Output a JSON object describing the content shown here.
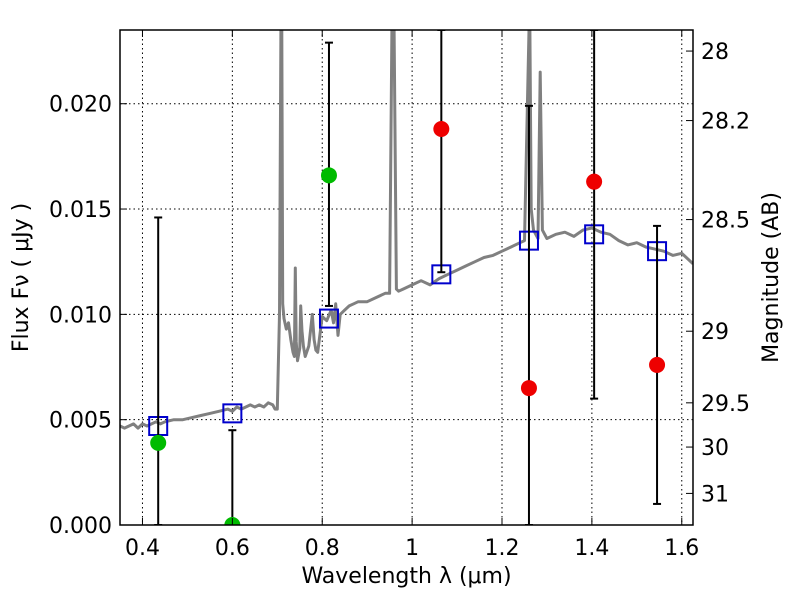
{
  "chart_data": {
    "type": "scatter",
    "xlabel": "Wavelength  λ (μm)",
    "ylabel": "Flux  Fν  ( μJy )",
    "y2label": "Magnitude (AB)",
    "xlim": [
      0.35,
      1.625
    ],
    "ylim": [
      0.0,
      0.0235
    ],
    "grid": true,
    "x_ticks": [
      0.4,
      0.6,
      0.8,
      1.0,
      1.2,
      1.4,
      1.6
    ],
    "x_tick_labels": [
      "0.4",
      "0.6",
      "0.8",
      "1",
      "1.2",
      "1.4",
      "1.6"
    ],
    "y_ticks": [
      0.0,
      0.005,
      0.01,
      0.015,
      0.02
    ],
    "y_tick_labels": [
      "0.000",
      "0.005",
      "0.010",
      "0.015",
      "0.020"
    ],
    "y2_ticks": [
      {
        "flux": 0.0225,
        "label": "28"
      },
      {
        "flux": 0.0192,
        "label": "28.2"
      },
      {
        "flux": 0.0145,
        "label": "28.5"
      },
      {
        "flux": 0.0092,
        "label": "29"
      },
      {
        "flux": 0.0058,
        "label": "29.5"
      },
      {
        "flux": 0.0037,
        "label": "30"
      },
      {
        "flux": 0.0015,
        "label": "31"
      }
    ],
    "spectrum": {
      "color": "#808080",
      "x": [
        0.35,
        0.36,
        0.37,
        0.38,
        0.39,
        0.4,
        0.41,
        0.42,
        0.43,
        0.44,
        0.45,
        0.47,
        0.49,
        0.51,
        0.53,
        0.55,
        0.57,
        0.59,
        0.6,
        0.61,
        0.62,
        0.63,
        0.64,
        0.65,
        0.66,
        0.67,
        0.68,
        0.69,
        0.695,
        0.7,
        0.705,
        0.708,
        0.71,
        0.712,
        0.715,
        0.72,
        0.725,
        0.73,
        0.735,
        0.738,
        0.74,
        0.742,
        0.745,
        0.75,
        0.752,
        0.755,
        0.758,
        0.762,
        0.77,
        0.778,
        0.782,
        0.786,
        0.79,
        0.8,
        0.81,
        0.82,
        0.825,
        0.83,
        0.835,
        0.84,
        0.85,
        0.86,
        0.87,
        0.88,
        0.9,
        0.92,
        0.94,
        0.95,
        0.955,
        0.96,
        0.965,
        0.97,
        0.98,
        1.0,
        1.02,
        1.04,
        1.06,
        1.08,
        1.1,
        1.12,
        1.14,
        1.16,
        1.18,
        1.2,
        1.22,
        1.24,
        1.25,
        1.26,
        1.262,
        1.265,
        1.27,
        1.28,
        1.285,
        1.29,
        1.3,
        1.32,
        1.34,
        1.36,
        1.38,
        1.4,
        1.42,
        1.44,
        1.46,
        1.48,
        1.5,
        1.52,
        1.54,
        1.56,
        1.58,
        1.6,
        1.625
      ],
      "y": [
        0.0047,
        0.0046,
        0.0047,
        0.0048,
        0.0046,
        0.0048,
        0.0047,
        0.0048,
        0.0049,
        0.0048,
        0.0049,
        0.005,
        0.005,
        0.0051,
        0.0052,
        0.0053,
        0.0054,
        0.0055,
        0.0054,
        0.0056,
        0.0055,
        0.0056,
        0.0057,
        0.0056,
        0.0057,
        0.0056,
        0.0058,
        0.0057,
        0.0055,
        0.0055,
        0.01,
        0.0235,
        0.0235,
        0.0105,
        0.0098,
        0.0093,
        0.0096,
        0.0088,
        0.0082,
        0.008,
        0.0122,
        0.0087,
        0.0078,
        0.0084,
        0.0104,
        0.0092,
        0.0085,
        0.008,
        0.0085,
        0.01,
        0.0088,
        0.0083,
        0.0082,
        0.0099,
        0.0097,
        0.0102,
        0.0096,
        0.0105,
        0.009,
        0.01,
        0.0102,
        0.0104,
        0.0105,
        0.0106,
        0.0106,
        0.0108,
        0.011,
        0.011,
        0.0235,
        0.0235,
        0.0112,
        0.0111,
        0.0112,
        0.0114,
        0.0116,
        0.0114,
        0.0117,
        0.0119,
        0.0121,
        0.0123,
        0.0125,
        0.0127,
        0.0128,
        0.013,
        0.0132,
        0.0134,
        0.0135,
        0.0235,
        0.0235,
        0.015,
        0.014,
        0.0136,
        0.0215,
        0.014,
        0.0136,
        0.0138,
        0.0139,
        0.0137,
        0.014,
        0.0141,
        0.0139,
        0.0138,
        0.0135,
        0.0133,
        0.0134,
        0.0132,
        0.0131,
        0.013,
        0.0128,
        0.0129,
        0.0124
      ]
    },
    "series": [
      {
        "marker": "square",
        "color": "#0000cc",
        "points": [
          {
            "x": 0.435,
            "y": 0.0047
          },
          {
            "x": 0.6,
            "y": 0.0053
          },
          {
            "x": 0.815,
            "y": 0.0098
          },
          {
            "x": 1.065,
            "y": 0.0119
          },
          {
            "x": 1.26,
            "y": 0.0135
          },
          {
            "x": 1.405,
            "y": 0.0138
          },
          {
            "x": 1.545,
            "y": 0.013
          }
        ]
      },
      {
        "marker": "circle",
        "color": "#00bb00",
        "points": [
          {
            "x": 0.435,
            "y": 0.0039,
            "ylo": 0.0,
            "yhi": 0.0146
          },
          {
            "x": 0.6,
            "y": 0.0,
            "ylo": 0.0,
            "yhi": 0.0045
          },
          {
            "x": 0.815,
            "y": 0.0166,
            "ylo": 0.0104,
            "yhi": 0.0229
          }
        ]
      },
      {
        "marker": "circle",
        "color": "#ee0000",
        "points": [
          {
            "x": 1.065,
            "y": 0.0188,
            "ylo": 0.012,
            "yhi": 0.0235
          },
          {
            "x": 1.26,
            "y": 0.0065,
            "ylo": 0.0,
            "yhi": 0.0199
          },
          {
            "x": 1.405,
            "y": 0.0163,
            "ylo": 0.006,
            "yhi": 0.0235
          },
          {
            "x": 1.545,
            "y": 0.0076,
            "ylo": 0.001,
            "yhi": 0.0142
          }
        ]
      }
    ]
  }
}
